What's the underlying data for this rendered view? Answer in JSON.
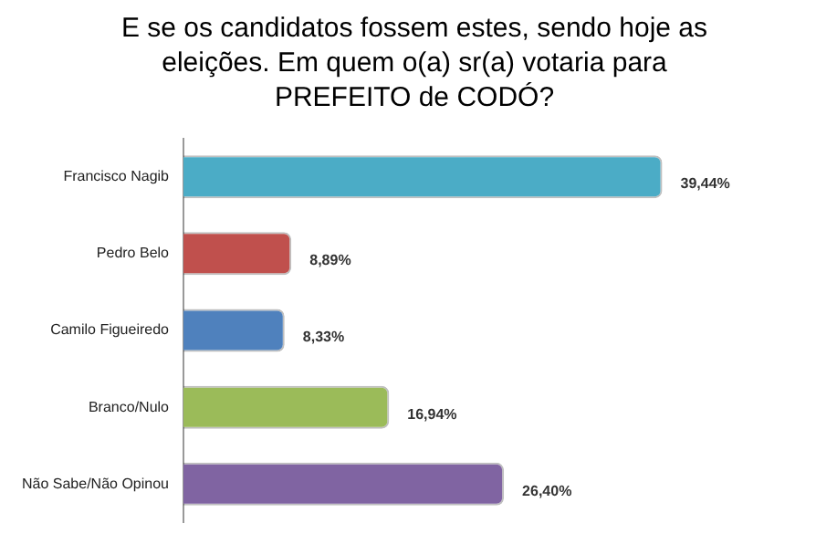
{
  "chart_data": {
    "type": "bar",
    "orientation": "horizontal",
    "title": "E se os candidatos fossem estes, sendo hoje as eleições. Em quem  o(a) sr(a) votaria para PREFEITO de CODÓ?",
    "categories": [
      "Francisco Nagib",
      "Pedro Belo",
      "Camilo Figueiredo",
      "Branco/Nulo",
      "Não Sabe/Não Opinou"
    ],
    "values": [
      39.44,
      8.89,
      8.33,
      16.94,
      26.4
    ],
    "colors": [
      "#4bacc6",
      "#c0504d",
      "#4f81bd",
      "#9bbb59",
      "#8064a2"
    ],
    "value_labels": [
      "39,44%",
      "8,89%",
      "8,33%",
      "16,94%",
      "26,40%"
    ],
    "tick_labels": "y",
    "grid": false,
    "legend": false
  }
}
